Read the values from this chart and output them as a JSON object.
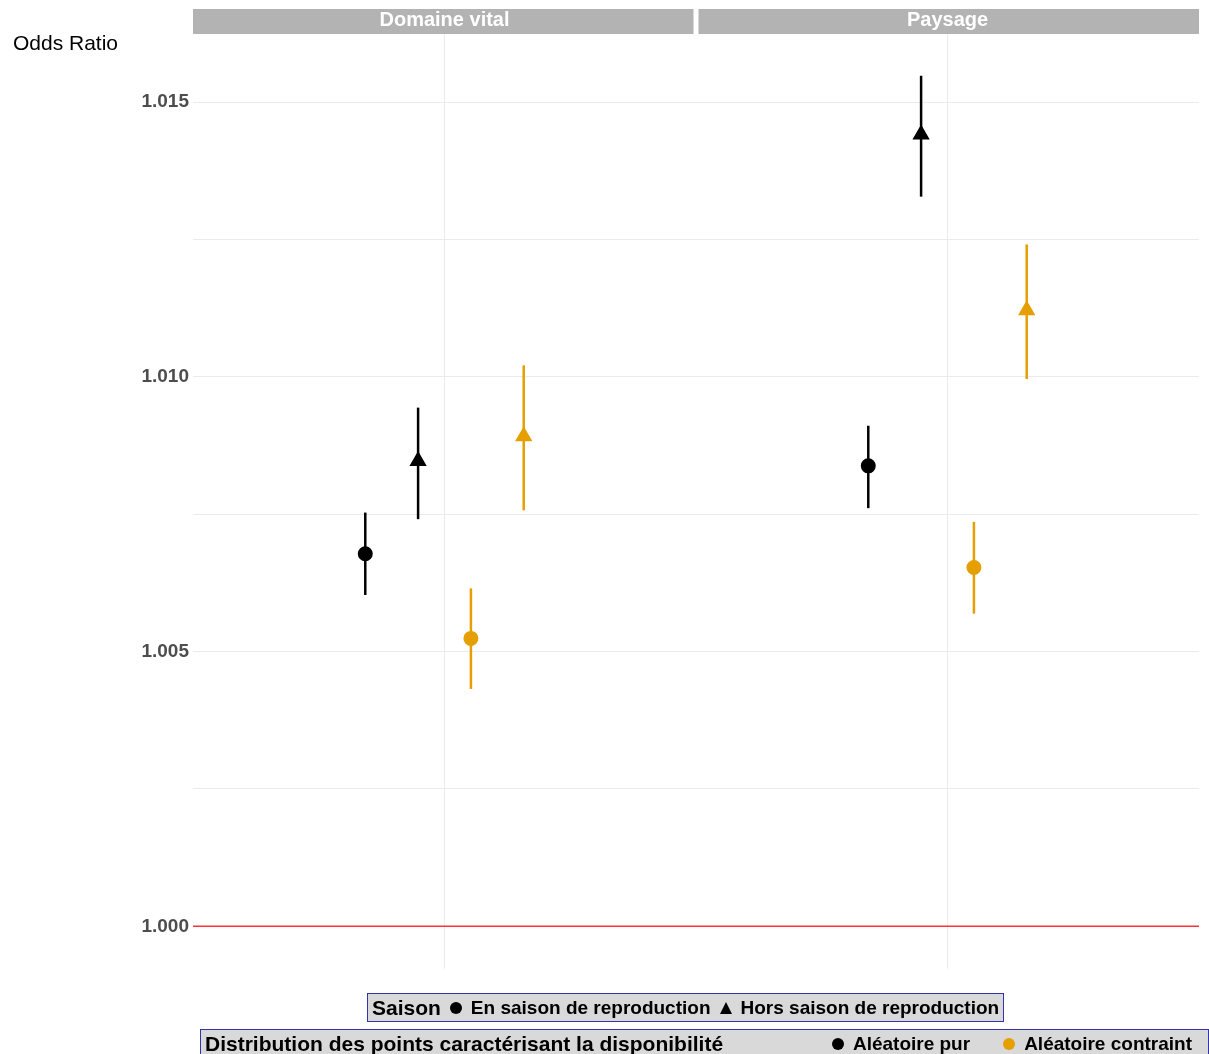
{
  "chart_data": {
    "type": "scatter",
    "ylabel": "Odds Ratio",
    "categories": [
      "Domaine vital",
      "Paysage"
    ],
    "grid": true,
    "legend_title": "Saison",
    "annotations": [
      "En saison de reproduction",
      "Hors saison de reproduction",
      "Distribution des points caractérisant la disponibilité",
      "Aléatoire pur",
      "Aléatoire contraint"
    ],
    "ylim": [
      0.99923,
      1.01624
    ],
    "yticks": [
      {
        "value": 1,
        "label": "1.000"
      },
      {
        "value": 1.0025,
        "label": null
      },
      {
        "value": 1.005,
        "label": "1.005"
      },
      {
        "value": 1.0075,
        "label": null
      },
      {
        "value": 1.01,
        "label": "1.010"
      },
      {
        "value": 1.0125,
        "label": null
      },
      {
        "value": 1.015,
        "label": "1.015"
      }
    ],
    "ref_lines": [
      {
        "axis": "y",
        "value": 1,
        "color": "#ff3333"
      }
    ],
    "series": [
      {
        "color": "#000000",
        "marker": "circle",
        "values": [
          1.00678,
          1.00838
        ],
        "errors": [
          [
            1.00603,
            1.00753
          ],
          [
            1.00761,
            1.00911
          ]
        ]
      },
      {
        "color": "#000000",
        "marker": "triangle",
        "values": [
          1.00847,
          1.01441
        ],
        "errors": [
          [
            1.00741,
            1.00944
          ],
          [
            1.01328,
            1.01548
          ]
        ]
      },
      {
        "color": "#e69f00",
        "marker": "circle",
        "values": [
          1.00524,
          1.00653
        ],
        "errors": [
          [
            1.00432,
            1.00615
          ],
          [
            1.00569,
            1.00736
          ]
        ]
      },
      {
        "color": "#e69f00",
        "marker": "triangle",
        "values": [
          1.00892,
          1.01121
        ],
        "errors": [
          [
            1.00757,
            1.01021
          ],
          [
            1.00996,
            1.01241
          ]
        ]
      }
    ]
  }
}
